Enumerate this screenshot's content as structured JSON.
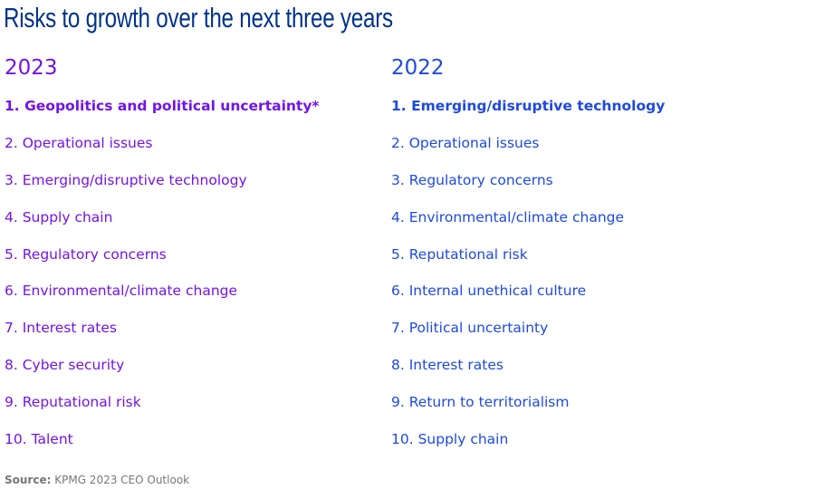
{
  "title": "Risks to growth over the next three years",
  "colors": {
    "title": "#00338D",
    "col2023": "#7213EA",
    "col2022": "#1E49E2",
    "source": "#777777"
  },
  "columns": [
    {
      "year": "2023",
      "items": [
        "1. Geopolitics and political uncertainty*",
        "2. Operational issues",
        "3. Emerging/disruptive technology",
        "4. Supply chain",
        "5. Regulatory concerns",
        "6. Environmental/climate change",
        "7. Interest rates",
        "8. Cyber security",
        "9. Reputational risk",
        "10. Talent"
      ]
    },
    {
      "year": "2022",
      "items": [
        "1. Emerging/disruptive technology",
        "2. Operational issues",
        "3. Regulatory concerns",
        "4. Environmental/climate change",
        "5. Reputational risk",
        "6. Internal unethical culture",
        "7. Political uncertainty",
        "8. Interest rates",
        "9. Return to territorialism",
        "10. Supply chain"
      ]
    }
  ],
  "source": {
    "label": "Source:",
    "text": "KPMG 2023 CEO Outlook"
  }
}
